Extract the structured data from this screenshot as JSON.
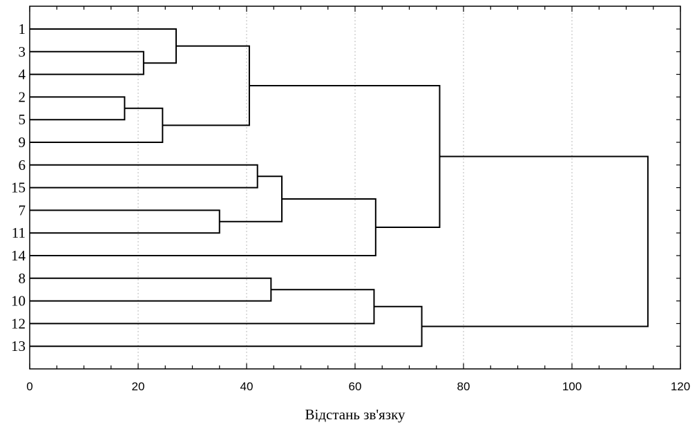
{
  "chart_data": {
    "type": "dendrogram",
    "orientation": "horizontal",
    "xlabel": "Відстань зв'язку",
    "xlim": [
      0,
      120
    ],
    "x_ticks": [
      0,
      20,
      40,
      60,
      80,
      100,
      120
    ],
    "grid": "vertical dotted",
    "leaves": [
      "1",
      "3",
      "4",
      "2",
      "5",
      "9",
      "6",
      "15",
      "7",
      "11",
      "14",
      "8",
      "10",
      "12",
      "13"
    ],
    "merges": [
      {
        "id": "c1",
        "children": [
          "2",
          "5"
        ],
        "distance": 17.5
      },
      {
        "id": "c2",
        "children": [
          "3",
          "4"
        ],
        "distance": 21
      },
      {
        "id": "c3",
        "children": [
          "c1",
          "9"
        ],
        "distance": 24.5
      },
      {
        "id": "c4",
        "children": [
          "1",
          "c2"
        ],
        "distance": 27
      },
      {
        "id": "c5",
        "children": [
          "7",
          "11"
        ],
        "distance": 35
      },
      {
        "id": "c6",
        "children": [
          "c4",
          "c3"
        ],
        "distance": 40.5
      },
      {
        "id": "c7",
        "children": [
          "6",
          "15"
        ],
        "distance": 42
      },
      {
        "id": "c8",
        "children": [
          "8",
          "10"
        ],
        "distance": 44.5
      },
      {
        "id": "c9",
        "children": [
          "c7",
          "c5"
        ],
        "distance": 46.5
      },
      {
        "id": "c10",
        "children": [
          "c8",
          "12"
        ],
        "distance": 63.5
      },
      {
        "id": "c11",
        "children": [
          "c9",
          "14"
        ],
        "distance": 63.8
      },
      {
        "id": "c12",
        "children": [
          "c10",
          "13"
        ],
        "distance": 72.3
      },
      {
        "id": "c13",
        "children": [
          "c6",
          "c11"
        ],
        "distance": 75.6
      },
      {
        "id": "c14",
        "children": [
          "c13",
          "c12"
        ],
        "distance": 114
      }
    ]
  }
}
